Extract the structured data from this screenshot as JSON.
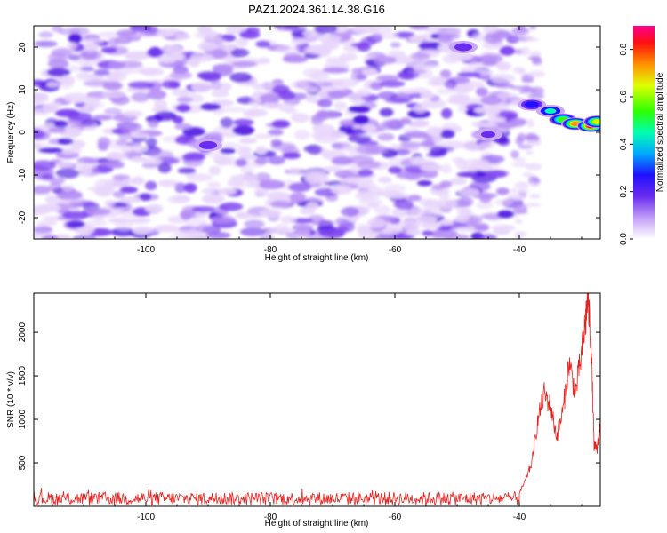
{
  "title": "PAZ1.2024.361.14.38.G16",
  "colors": {
    "snr_line": "#e8231f",
    "colormap": [
      "#ffffff",
      "#e8d5fb",
      "#b48cf5",
      "#7a3ff0",
      "#4a10e0",
      "#0000ff",
      "#00c8ff",
      "#00ff66",
      "#c8ff00",
      "#ffb000",
      "#ff3000",
      "#ff00a0"
    ]
  },
  "chart_data": [
    {
      "type": "heatmap",
      "title": "PAZ1.2024.361.14.38.G16",
      "xlabel": "Height of straight line (km)",
      "ylabel": "Frequency (Hz)",
      "xlim": [
        -118,
        -27
      ],
      "ylim": [
        -25,
        25
      ],
      "xticks": [
        -100,
        -80,
        -60,
        -40
      ],
      "yticks": [
        -20,
        -10,
        0,
        10,
        20
      ],
      "colorbar": {
        "label": "Normalized spectral amplitude",
        "range": [
          0.0,
          0.9
        ],
        "ticks": [
          0.0,
          0.2,
          0.4,
          0.6,
          0.8
        ]
      },
      "background_noise_amplitude": 0.1,
      "features": [
        {
          "x": -38,
          "y": 6.5,
          "amplitude": 0.3
        },
        {
          "x": -35,
          "y": 5.0,
          "amplitude": 0.45
        },
        {
          "x": -33,
          "y": 3.0,
          "amplitude": 0.6
        },
        {
          "x": -31,
          "y": 2.0,
          "amplitude": 0.75
        },
        {
          "x": -28.5,
          "y": 1.5,
          "amplitude": 0.9
        },
        {
          "x": -27.5,
          "y": 2.5,
          "amplitude": 0.7
        },
        {
          "x": -45,
          "y": -0.5,
          "amplitude": 0.25
        },
        {
          "x": -49,
          "y": 20,
          "amplitude": 0.22
        },
        {
          "x": -90,
          "y": -3,
          "amplitude": 0.22
        }
      ]
    },
    {
      "type": "line",
      "xlabel": "Height of straight line (km)",
      "ylabel": "SNR (10 * v/v)",
      "xlim": [
        -118,
        -27
      ],
      "ylim": [
        0,
        2450
      ],
      "xticks": [
        -100,
        -80,
        -60,
        -40
      ],
      "yticks": [
        500,
        1000,
        1500,
        2000
      ],
      "noise_floor": {
        "x_range": [
          -118,
          -40
        ],
        "mean": 90,
        "spread": 110
      },
      "x": [
        -40,
        -39,
        -38,
        -37,
        -36,
        -35,
        -34,
        -33,
        -32,
        -31,
        -30,
        -29.5,
        -29,
        -28.5,
        -28,
        -27.5,
        -27
      ],
      "values": [
        150,
        300,
        500,
        1000,
        1300,
        1150,
        800,
        1100,
        1650,
        1300,
        1750,
        2050,
        2400,
        1900,
        700,
        650,
        950
      ]
    }
  ]
}
